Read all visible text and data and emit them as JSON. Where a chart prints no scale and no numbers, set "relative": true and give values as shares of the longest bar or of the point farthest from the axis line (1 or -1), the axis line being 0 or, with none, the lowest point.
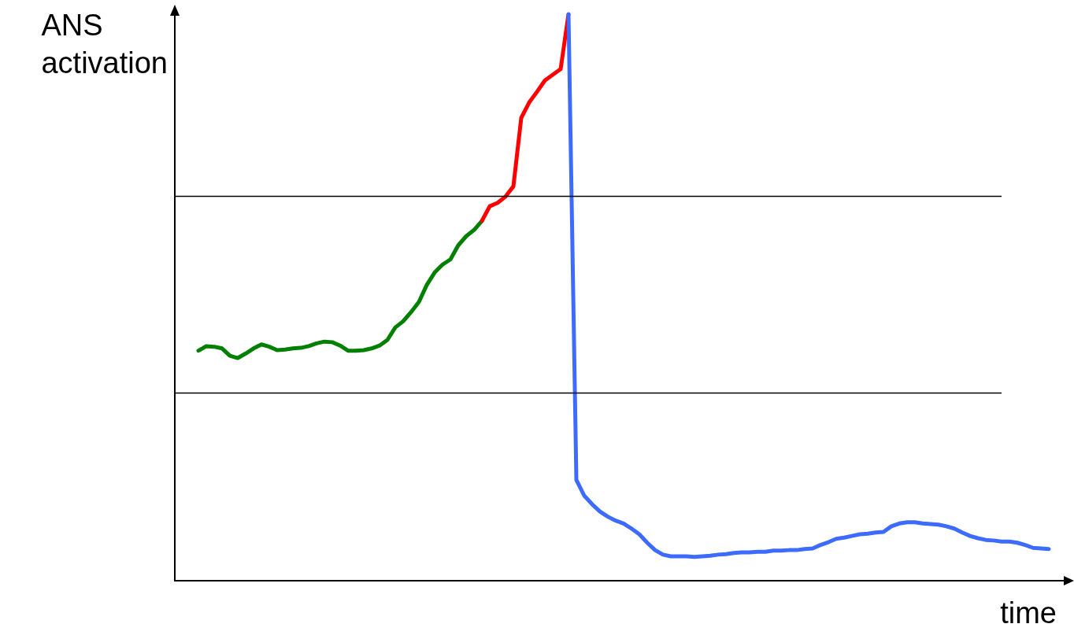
{
  "chart_data": {
    "type": "line",
    "relative": true,
    "ylabel": "ANS activation",
    "xlabel": "time",
    "grid": false,
    "marker": "none",
    "line_style": "solid",
    "categories": [
      null,
      null,
      null,
      null,
      null,
      null,
      null,
      null,
      null,
      null,
      null,
      null,
      null,
      null,
      null,
      null,
      null,
      null,
      null,
      null,
      null,
      null,
      null,
      null,
      null,
      null,
      null,
      null,
      null,
      null,
      null,
      null,
      null,
      null,
      null,
      null,
      null,
      null,
      null,
      null,
      null,
      null,
      null,
      null,
      null,
      null,
      null,
      null,
      null,
      null,
      null,
      null,
      null,
      null,
      null,
      null,
      null,
      null,
      null,
      null,
      null,
      null,
      null,
      null,
      null,
      null,
      null,
      null,
      null,
      null,
      null,
      null,
      null,
      null,
      null,
      null,
      null,
      null,
      null,
      null,
      null,
      null,
      null,
      null,
      null,
      null,
      null,
      null,
      null,
      null,
      null,
      null,
      null,
      null,
      null,
      null,
      null,
      null,
      null,
      null,
      null,
      null,
      null,
      null,
      null,
      null,
      null,
      null,
      null,
      null,
      null,
      null,
      null,
      null
    ],
    "ref_lines": [
      {
        "axis": "y",
        "value": 0.679,
        "color": "#000000"
      },
      {
        "axis": "y",
        "value": 0.332,
        "color": "#000000"
      }
    ],
    "series": [
      {
        "color": "#008000",
        "values": [
          null,
          null,
          null,
          0.406,
          0.414,
          0.413,
          0.41,
          0.397,
          0.393,
          0.401,
          0.41,
          0.417,
          0.413,
          0.407,
          0.408,
          0.41,
          0.411,
          0.414,
          0.419,
          0.422,
          0.421,
          0.415,
          0.406,
          0.406,
          0.407,
          0.41,
          0.415,
          0.425,
          0.447,
          0.458,
          0.474,
          0.492,
          0.522,
          0.544,
          0.558,
          0.567,
          0.592,
          0.608,
          0.619,
          0.635,
          null,
          null,
          null,
          null,
          null,
          null,
          null,
          null,
          null,
          null,
          null,
          null,
          null,
          null,
          null,
          null,
          null,
          null,
          null,
          null,
          null,
          null,
          null,
          null,
          null,
          null,
          null,
          null,
          null,
          null,
          null,
          null,
          null,
          null,
          null,
          null,
          null,
          null,
          null,
          null,
          null,
          null,
          null,
          null,
          null,
          null,
          null,
          null,
          null,
          null,
          null,
          null,
          null,
          null,
          null,
          null,
          null,
          null,
          null,
          null,
          null,
          null,
          null,
          null,
          null,
          null,
          null,
          null,
          null,
          null,
          null,
          null,
          null,
          null
        ]
      },
      {
        "color": "#ff0000",
        "values": [
          null,
          null,
          null,
          null,
          null,
          null,
          null,
          null,
          null,
          null,
          null,
          null,
          null,
          null,
          null,
          null,
          null,
          null,
          null,
          null,
          null,
          null,
          null,
          null,
          null,
          null,
          null,
          null,
          null,
          null,
          null,
          null,
          null,
          null,
          null,
          null,
          null,
          null,
          null,
          0.635,
          0.661,
          0.667,
          0.678,
          0.696,
          0.817,
          0.844,
          0.863,
          0.883,
          0.893,
          0.903,
          1,
          null,
          null,
          null,
          null,
          null,
          null,
          null,
          null,
          null,
          null,
          null,
          null,
          null,
          null,
          null,
          null,
          null,
          null,
          null,
          null,
          null,
          null,
          null,
          null,
          null,
          null,
          null,
          null,
          null,
          null,
          null,
          null,
          null,
          null,
          null,
          null,
          null,
          null,
          null,
          null,
          null,
          null,
          null,
          null,
          null,
          null,
          null,
          null,
          null,
          null,
          null,
          null,
          null,
          null,
          null,
          null,
          null,
          null,
          null,
          null,
          null,
          null,
          null
        ]
      },
      {
        "color": "#3d6bff",
        "values": [
          null,
          null,
          null,
          null,
          null,
          null,
          null,
          null,
          null,
          null,
          null,
          null,
          null,
          null,
          null,
          null,
          null,
          null,
          null,
          null,
          null,
          null,
          null,
          null,
          null,
          null,
          null,
          null,
          null,
          null,
          null,
          null,
          null,
          null,
          null,
          null,
          null,
          null,
          null,
          null,
          null,
          null,
          null,
          null,
          null,
          null,
          null,
          null,
          null,
          null,
          1,
          0.178,
          0.15,
          0.135,
          0.122,
          0.113,
          0.106,
          0.101,
          0.092,
          0.082,
          0.067,
          0.054,
          0.046,
          0.043,
          0.043,
          0.043,
          0.042,
          0.043,
          0.044,
          0.046,
          0.047,
          0.049,
          0.05,
          0.05,
          0.051,
          0.051,
          0.053,
          0.053,
          0.054,
          0.054,
          0.056,
          0.057,
          0.063,
          0.068,
          0.074,
          0.076,
          0.079,
          0.082,
          0.083,
          0.085,
          0.086,
          0.096,
          0.101,
          0.103,
          0.103,
          0.101,
          0.1,
          0.099,
          0.096,
          0.092,
          0.085,
          0.079,
          0.075,
          0.072,
          0.071,
          0.069,
          0.069,
          0.067,
          0.063,
          0.058,
          0.057,
          0.056,
          null,
          null
        ]
      }
    ]
  }
}
